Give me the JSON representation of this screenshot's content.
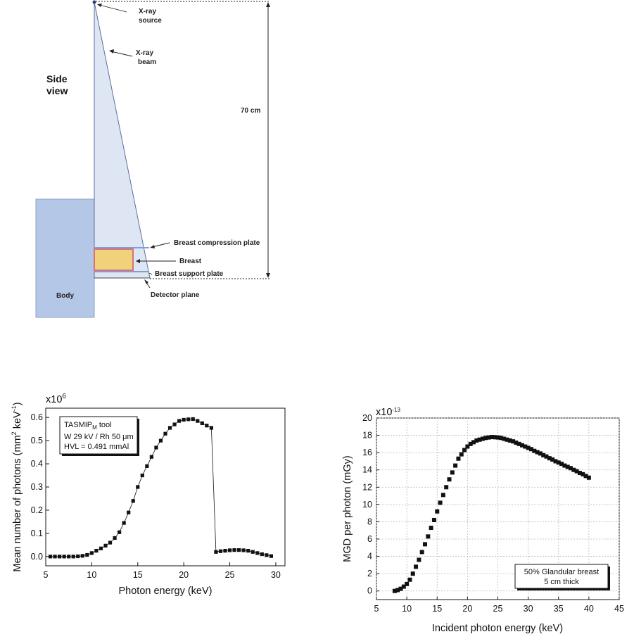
{
  "diagram": {
    "view_label_1": "Side",
    "view_label_2": "view",
    "source_label_1": "X-ray",
    "source_label_2": "source",
    "beam_label_1": "X-ray",
    "beam_label_2": "beam",
    "distance_label": "70 cm",
    "compression_label": "Breast compression plate",
    "breast_label": "Breast",
    "support_label": "Breast support plate",
    "detector_label": "Detector plane",
    "body_label": "Body",
    "colors": {
      "beam": "#dfe6f3",
      "body": "#b4c7e7",
      "breast_fill": "#f0d27a",
      "breast_edge": "#d9707a",
      "plate": "#7f9fd1"
    }
  },
  "chart_data": [
    {
      "type": "line",
      "title": "",
      "xlabel": "Photon energy (keV)",
      "ylabel": "Mean number of photons (mm² keV⁻¹)",
      "ylabel_parts": [
        "Mean number of photons (mm",
        "2",
        " keV",
        "-1",
        ")"
      ],
      "y_multiplier": "x10",
      "y_multiplier_exp": "6",
      "xlim": [
        5,
        31
      ],
      "ylim": [
        -0.04,
        0.64
      ],
      "xticks": [
        "5",
        "10",
        "15",
        "20",
        "25",
        "30"
      ],
      "yticks": [
        "0.0",
        "0.1",
        "0.2",
        "0.3",
        "0.4",
        "0.5",
        "0.6"
      ],
      "legend_lines": [
        "TASMIP",
        "M",
        " tool",
        "W 29 kV / Rh 50 μm",
        "HVL = 0.491 mmAl"
      ],
      "legend_position": "top-left",
      "series": [
        {
          "x": [
            5.5,
            6,
            6.5,
            7,
            7.5,
            8,
            8.5,
            9,
            9.5,
            10,
            10.5,
            11,
            11.5,
            12,
            12.5,
            13,
            13.5,
            14,
            14.5,
            15,
            15.5,
            16,
            16.5,
            17,
            17.5,
            18,
            18.5,
            19,
            19.5,
            20,
            20.5,
            21,
            21.5,
            22,
            22.5,
            23,
            23.5,
            24,
            24.5,
            25,
            25.5,
            26,
            26.5,
            27,
            27.5,
            28,
            28.5,
            29,
            29.5
          ],
          "y": [
            0.0,
            0.0,
            0.0,
            0.0,
            0.0,
            0.0,
            0.001,
            0.003,
            0.007,
            0.015,
            0.025,
            0.035,
            0.047,
            0.06,
            0.08,
            0.105,
            0.145,
            0.19,
            0.24,
            0.3,
            0.35,
            0.39,
            0.43,
            0.47,
            0.5,
            0.53,
            0.555,
            0.57,
            0.585,
            0.59,
            0.592,
            0.593,
            0.585,
            0.575,
            0.565,
            0.555,
            0.02,
            0.023,
            0.025,
            0.027,
            0.028,
            0.028,
            0.027,
            0.025,
            0.02,
            0.015,
            0.01,
            0.006,
            0.002
          ]
        }
      ]
    },
    {
      "type": "scatter",
      "title": "",
      "xlabel": "Incident photon energy (keV)",
      "ylabel": "MGD per photon (mGy)",
      "y_multiplier": "x10",
      "y_multiplier_exp": "-13",
      "xlim": [
        5,
        45
      ],
      "ylim": [
        -1,
        20
      ],
      "grid": true,
      "xticks": [
        "5",
        "10",
        "15",
        "20",
        "25",
        "30",
        "35",
        "40",
        "45"
      ],
      "yticks": [
        "0",
        "2",
        "4",
        "6",
        "8",
        "10",
        "12",
        "14",
        "16",
        "18",
        "20"
      ],
      "legend_lines": [
        "50% Glandular breast",
        "5 cm thick"
      ],
      "legend_position": "bottom-right",
      "series": [
        {
          "x": [
            8,
            8.5,
            9,
            9.5,
            10,
            10.5,
            11,
            11.5,
            12,
            12.5,
            13,
            13.5,
            14,
            14.5,
            15,
            15.5,
            16,
            16.5,
            17,
            17.5,
            18,
            18.5,
            19,
            19.5,
            20,
            20.5,
            21,
            21.5,
            22,
            22.5,
            23,
            23.5,
            24,
            24.5,
            25,
            25.5,
            26,
            26.5,
            27,
            27.5,
            28,
            28.5,
            29,
            29.5,
            30,
            30.5,
            31,
            31.5,
            32,
            32.5,
            33,
            33.5,
            34,
            34.5,
            35,
            35.5,
            36,
            36.5,
            37,
            37.5,
            38,
            38.5,
            39,
            39.5,
            40
          ],
          "y": [
            0.0,
            0.1,
            0.25,
            0.5,
            0.8,
            1.3,
            2.0,
            2.8,
            3.6,
            4.5,
            5.4,
            6.3,
            7.3,
            8.2,
            9.2,
            10.2,
            11.1,
            12.0,
            12.9,
            13.7,
            14.5,
            15.3,
            15.8,
            16.3,
            16.7,
            17.0,
            17.2,
            17.4,
            17.5,
            17.6,
            17.7,
            17.75,
            17.8,
            17.78,
            17.75,
            17.7,
            17.6,
            17.5,
            17.4,
            17.3,
            17.15,
            17.0,
            16.85,
            16.7,
            16.55,
            16.4,
            16.2,
            16.05,
            15.9,
            15.7,
            15.55,
            15.35,
            15.2,
            15.0,
            14.85,
            14.7,
            14.5,
            14.35,
            14.2,
            14.0,
            13.85,
            13.65,
            13.5,
            13.3,
            13.1
          ]
        }
      ]
    }
  ]
}
